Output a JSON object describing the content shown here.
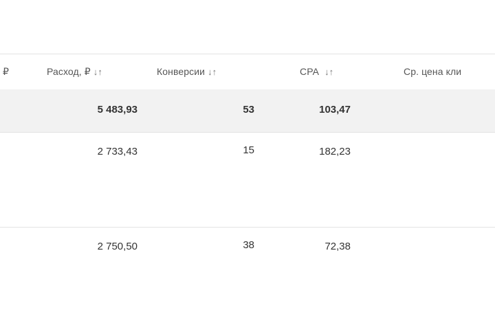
{
  "table": {
    "columns": [
      {
        "label": ", ₽",
        "sortable": false
      },
      {
        "label": "Расход, ₽",
        "sort_icon": "↓↑"
      },
      {
        "label": "Конверсии",
        "sort_icon": "↓↑"
      },
      {
        "label": "CPA",
        "sort_icon": "↓↑"
      },
      {
        "label": "Ср. цена кли",
        "sortable": false
      }
    ],
    "total": {
      "cost": "5 483,93",
      "conversions": "53",
      "cpa": "103,47"
    },
    "rows": [
      {
        "cost": "2 733,43",
        "conversions": "15",
        "cpa": "182,23"
      },
      {
        "cost": "2 750,50",
        "conversions": "38",
        "cpa": "72,38"
      }
    ]
  },
  "colors": {
    "total_row_bg": "#f2f2f2",
    "row_divider": "#e3e3e3",
    "header_text": "#555555"
  }
}
